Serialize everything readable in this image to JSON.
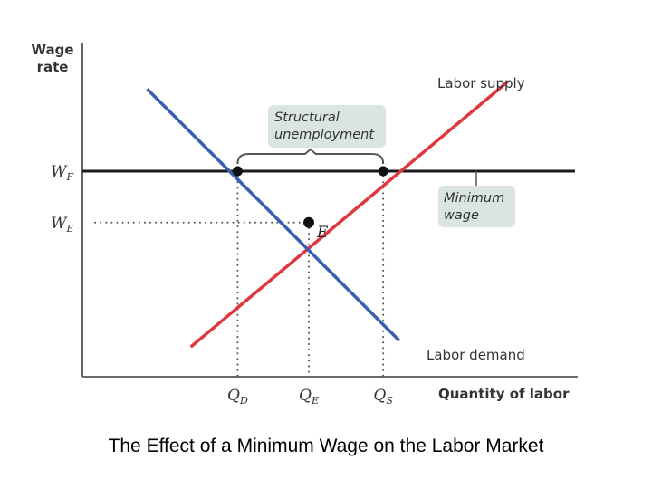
{
  "caption": "The Effect of a Minimum Wage on the Labor Market",
  "chart_data": {
    "type": "line",
    "ylabel_lines": [
      "Wage",
      "rate"
    ],
    "xlabel": "Quantity of labor",
    "x_ticks": [
      {
        "main": "Q",
        "sub": "D",
        "key": "QD"
      },
      {
        "main": "Q",
        "sub": "E",
        "key": "QE"
      },
      {
        "main": "Q",
        "sub": "S",
        "key": "QS"
      }
    ],
    "y_ticks": [
      {
        "main": "W",
        "sub": "F",
        "key": "WF"
      },
      {
        "main": "W",
        "sub": "E",
        "key": "WE"
      }
    ],
    "series": [
      {
        "name": "Labor supply",
        "color": "#e0373f",
        "points": [
          [
            0.67,
            0.29
          ],
          [
            2.63,
            2.87
          ]
        ]
      },
      {
        "name": "Labor demand",
        "color": "#3a5fb0",
        "points": [
          [
            0.4,
            2.8
          ],
          [
            1.96,
            0.35
          ]
        ]
      }
    ],
    "minimum_wage": {
      "value": 2.0,
      "label_lines": [
        "Minimum",
        "wage"
      ],
      "color": "#1a1a1a"
    },
    "levels": {
      "QD": 0.96,
      "QE": 1.4,
      "QS": 1.86,
      "WF": 2.0,
      "WE": 1.5
    },
    "equilibrium": {
      "label": "E",
      "x": 1.4,
      "y": 1.5
    },
    "structural_unemployment": {
      "label_lines": [
        "Structural",
        "unemployment"
      ]
    },
    "colors": {
      "box_fill": "#d9e4e3",
      "axis": "#555555",
      "points": "#111111"
    }
  }
}
